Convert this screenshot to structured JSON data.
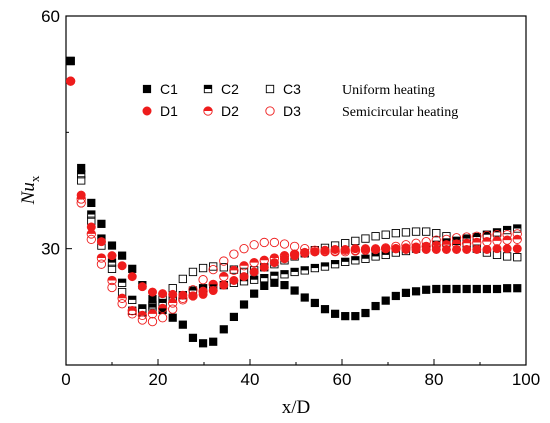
{
  "chart_data": {
    "type": "scatter",
    "title": "",
    "xlabel": "x/D",
    "ylabel": "Nu",
    "ylabel_sub": "x",
    "xlim": [
      0,
      100
    ],
    "ylim": [
      15,
      60
    ],
    "x_ticks": [
      0,
      20,
      40,
      60,
      80,
      100
    ],
    "y_ticks": [
      30,
      60
    ],
    "grid": false,
    "legend_placement": "top-center",
    "legend_groups": [
      {
        "label": "Uniform heating",
        "members": [
          "C1",
          "C2",
          "C3"
        ]
      },
      {
        "label": "Semicircular heating",
        "members": [
          "D1",
          "D2",
          "D3"
        ]
      }
    ],
    "series": [
      {
        "name": "C1",
        "color": "#000000",
        "marker": "square-filled",
        "x": [
          1,
          3.3,
          5.5,
          7.7,
          10,
          12.2,
          14.4,
          16.6,
          18.8,
          21,
          23.2,
          25.4,
          27.6,
          29.8,
          32,
          34.3,
          36.5,
          38.7,
          40.9,
          43.1,
          45.3,
          47.5,
          49.7,
          51.9,
          54.1,
          56.3,
          58.5,
          60.7,
          62.9,
          65.1,
          67.3,
          69.5,
          71.7,
          73.9,
          76.1,
          78.3,
          80.5,
          82.7,
          84.9,
          87.1,
          89.3,
          91.5,
          93.7,
          95.9,
          98.1
        ],
        "y": [
          54.2,
          40.4,
          35.9,
          33.2,
          30.4,
          29.1,
          27.4,
          25.3,
          23.5,
          22.1,
          21.1,
          20.2,
          18.5,
          17.8,
          18.0,
          19.6,
          21.2,
          22.8,
          24.2,
          25.2,
          25.6,
          25.3,
          24.6,
          23.7,
          23.0,
          22.2,
          21.6,
          21.3,
          21.3,
          21.7,
          22.6,
          23.3,
          23.9,
          24.3,
          24.5,
          24.7,
          24.8,
          24.8,
          24.8,
          24.8,
          24.8,
          24.8,
          24.8,
          24.9,
          24.9
        ]
      },
      {
        "name": "C2",
        "color": "#000000",
        "marker": "square-half",
        "x": [
          1,
          3.3,
          5.5,
          7.7,
          10,
          12.2,
          14.4,
          16.6,
          18.8,
          21,
          23.2,
          25.4,
          27.6,
          29.8,
          32,
          34.3,
          36.5,
          38.7,
          40.9,
          43.1,
          45.3,
          47.5,
          49.7,
          51.9,
          54.1,
          56.3,
          58.5,
          60.7,
          62.9,
          65.1,
          67.3,
          69.5,
          71.7,
          73.9,
          76.1,
          78.3,
          80.5,
          82.7,
          84.9,
          87.1,
          89.3,
          91.5,
          93.7,
          95.9,
          98.1
        ],
        "y": [
          54.2,
          39.6,
          34.4,
          31.3,
          28.2,
          25.6,
          23.4,
          22.3,
          22.4,
          23.0,
          23.6,
          24.0,
          24.6,
          24.9,
          25.1,
          25.3,
          25.6,
          25.8,
          26.0,
          26.2,
          26.5,
          26.7,
          27.0,
          27.2,
          27.5,
          27.7,
          28.0,
          28.3,
          28.5,
          28.7,
          29.0,
          29.2,
          29.5,
          29.7,
          30.0,
          30.2,
          30.5,
          30.8,
          31.0,
          31.3,
          31.5,
          31.8,
          32.1,
          32.4,
          32.6
        ]
      },
      {
        "name": "C3",
        "color": "#000000",
        "marker": "square-open",
        "x": [
          1,
          3.3,
          5.5,
          7.7,
          10,
          12.2,
          14.4,
          16.6,
          18.8,
          21,
          23.2,
          25.4,
          27.6,
          29.8,
          32,
          34.3,
          36.5,
          38.7,
          40.9,
          43.1,
          45.3,
          47.5,
          49.7,
          51.9,
          54.1,
          56.3,
          58.5,
          60.7,
          62.9,
          65.1,
          67.3,
          69.5,
          71.7,
          73.9,
          76.1,
          78.3,
          80.5,
          82.7,
          84.9,
          87.1,
          89.3,
          91.5,
          93.7,
          95.9,
          98.1
        ],
        "y": [
          54.2,
          38.8,
          33.6,
          30.4,
          27.4,
          24.4,
          22.0,
          21.8,
          22.7,
          23.7,
          24.9,
          26.1,
          27.0,
          27.5,
          27.7,
          27.6,
          27.3,
          27.0,
          27.2,
          27.6,
          28.0,
          28.5,
          29.0,
          29.4,
          29.8,
          30.1,
          30.4,
          30.7,
          31.0,
          31.3,
          31.6,
          31.8,
          32.0,
          32.1,
          32.2,
          32.2,
          32.0,
          31.6,
          31.0,
          30.5,
          30.0,
          29.5,
          29.2,
          29.0,
          28.9
        ]
      },
      {
        "name": "D1",
        "color": "#ee1c1c",
        "marker": "circle-filled",
        "x": [
          1,
          3.3,
          5.5,
          7.7,
          10,
          12.2,
          14.4,
          16.6,
          18.8,
          21,
          23.2,
          25.4,
          27.6,
          29.8,
          32,
          34.3,
          36.5,
          38.7,
          40.9,
          43.1,
          45.3,
          47.5,
          49.7,
          51.9,
          54.1,
          56.3,
          58.5,
          60.7,
          62.9,
          65.1,
          67.3,
          69.5,
          71.7,
          73.9,
          76.1,
          78.3,
          80.5,
          82.7,
          84.9,
          87.1,
          89.3,
          91.5,
          93.7,
          95.9,
          98.1
        ],
        "y": [
          51.6,
          36.9,
          32.8,
          30.9,
          29.1,
          27.8,
          26.4,
          25.1,
          24.4,
          24.2,
          24.1,
          24.0,
          23.9,
          24.1,
          24.6,
          25.3,
          25.9,
          26.4,
          27.0,
          27.6,
          28.2,
          28.7,
          29.1,
          29.4,
          29.6,
          29.8,
          29.9,
          29.9,
          30.0,
          30.0,
          30.0,
          30.0,
          30.0,
          29.9,
          29.9,
          29.9,
          29.9,
          29.9,
          29.9,
          29.9,
          29.9,
          29.9,
          30.0,
          30.0,
          30.0
        ]
      },
      {
        "name": "D2",
        "color": "#ee1c1c",
        "marker": "circle-half",
        "x": [
          1,
          3.3,
          5.5,
          7.7,
          10,
          12.2,
          14.4,
          16.6,
          18.8,
          21,
          23.2,
          25.4,
          27.6,
          29.8,
          32,
          34.3,
          36.5,
          38.7,
          40.9,
          43.1,
          45.3,
          47.5,
          49.7,
          51.9,
          54.1,
          56.3,
          58.5,
          60.7,
          62.9,
          65.1,
          67.3,
          69.5,
          71.7,
          73.9,
          76.1,
          78.3,
          80.5,
          82.7,
          84.9,
          87.1,
          89.3,
          91.5,
          93.7,
          95.9,
          98.1
        ],
        "y": [
          51.6,
          36.4,
          31.9,
          28.8,
          25.9,
          23.6,
          22.0,
          21.4,
          21.6,
          22.3,
          23.0,
          23.6,
          23.9,
          24.5,
          25.4,
          26.4,
          27.2,
          27.8,
          28.2,
          28.5,
          28.8,
          29.1,
          29.3,
          29.5,
          29.6,
          29.7,
          29.7,
          29.8,
          29.8,
          29.9,
          29.9,
          30.0,
          30.0,
          30.1,
          30.2,
          30.3,
          30.4,
          30.5,
          30.6,
          30.7,
          30.8,
          30.9,
          31.0,
          31.1,
          31.2
        ]
      },
      {
        "name": "D3",
        "color": "#ee1c1c",
        "marker": "circle-open",
        "x": [
          1,
          3.3,
          5.5,
          7.7,
          10,
          12.2,
          14.4,
          16.6,
          18.8,
          21,
          23.2,
          25.4,
          27.6,
          29.8,
          32,
          34.3,
          36.5,
          38.7,
          40.9,
          43.1,
          45.3,
          47.5,
          49.7,
          51.9,
          54.1,
          56.3,
          58.5,
          60.7,
          62.9,
          65.1,
          67.3,
          69.5,
          71.7,
          73.9,
          76.1,
          78.3,
          80.5,
          82.7,
          84.9,
          87.1,
          89.3,
          91.5,
          93.7,
          95.9,
          98.1
        ],
        "y": [
          51.6,
          35.9,
          31.2,
          28.0,
          25.0,
          22.9,
          21.6,
          20.8,
          20.6,
          21.1,
          22.2,
          23.4,
          24.7,
          26.0,
          27.3,
          28.4,
          29.3,
          30.0,
          30.5,
          30.8,
          30.8,
          30.6,
          30.3,
          30.0,
          29.8,
          29.6,
          29.6,
          29.6,
          29.7,
          29.8,
          29.9,
          30.1,
          30.3,
          30.5,
          30.7,
          30.9,
          31.1,
          31.2,
          31.4,
          31.5,
          31.6,
          31.7,
          31.8,
          31.8,
          31.9
        ]
      }
    ]
  }
}
